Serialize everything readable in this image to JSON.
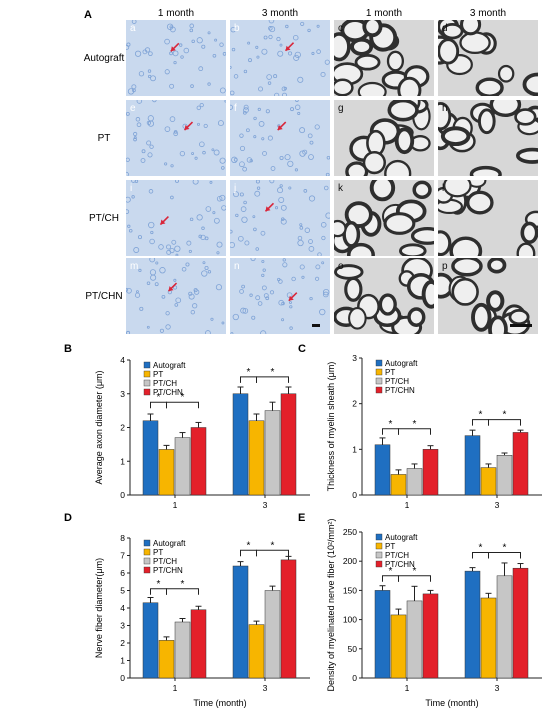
{
  "figure": {
    "micrograph_panel": {
      "panel_label": "A",
      "column_headers": [
        "1 month",
        "3 month",
        "1 month",
        "3 month"
      ],
      "row_labels": [
        "Autograft",
        "PT",
        "PT/CH",
        "PT/CHN"
      ],
      "tile_letters": [
        [
          "a",
          "b",
          "c",
          "d"
        ],
        [
          "e",
          "f",
          "g",
          "h"
        ],
        [
          "i",
          "j",
          "k",
          "l"
        ],
        [
          "m",
          "n",
          "o",
          "p"
        ]
      ],
      "colors": {
        "stain_bg": "#c9d9ee",
        "stain_dark": "#7fa3d6",
        "tem_bg": "#d7d7d7",
        "tem_dark": "#2e2e2e",
        "arrow": "#d9263a"
      }
    },
    "legend_labels": [
      "Autograft",
      "PT",
      "PT/CH",
      "PT/CHN"
    ],
    "colors": {
      "Autograft": "#1f6fc1",
      "PT": "#f7b500",
      "PT/CH": "#c6c6c6",
      "PT/CHN": "#e3202a"
    },
    "significance_mark": "*"
  },
  "chart_data": [
    {
      "panel_label": "B",
      "type": "bar",
      "categories": [
        "1",
        "3"
      ],
      "xlabel": "",
      "ylabel": "Average axon diameter (μm)",
      "ylim": [
        0,
        4
      ],
      "yticks": [
        0,
        1,
        2,
        3,
        4
      ],
      "legend_position": "top-left",
      "series": [
        {
          "name": "Autograft",
          "values": [
            2.2,
            3.0
          ],
          "errors": [
            0.2,
            0.2
          ]
        },
        {
          "name": "PT",
          "values": [
            1.35,
            2.2
          ],
          "errors": [
            0.12,
            0.2
          ]
        },
        {
          "name": "PT/CH",
          "values": [
            1.7,
            2.5
          ],
          "errors": [
            0.15,
            0.25
          ]
        },
        {
          "name": "PT/CHN",
          "values": [
            2.0,
            3.0
          ],
          "errors": [
            0.15,
            0.2
          ]
        }
      ],
      "significance_brackets": [
        {
          "category": 0,
          "from_series": 0,
          "to_series": 1,
          "level": 2.75,
          "label": "*"
        },
        {
          "category": 0,
          "from_series": 1,
          "to_series": 3,
          "level": 2.75,
          "label": "*"
        },
        {
          "category": 1,
          "from_series": 0,
          "to_series": 1,
          "level": 3.5,
          "label": "*"
        },
        {
          "category": 1,
          "from_series": 1,
          "to_series": 3,
          "level": 3.5,
          "label": "*"
        }
      ]
    },
    {
      "panel_label": "C",
      "type": "bar",
      "categories": [
        "1",
        "3"
      ],
      "xlabel": "",
      "ylabel": "Thickness of myelin sheath (μm)",
      "ylim": [
        0,
        3
      ],
      "yticks": [
        0,
        1,
        2,
        3
      ],
      "legend_position": "top-left",
      "series": [
        {
          "name": "Autograft",
          "values": [
            1.1,
            1.3
          ],
          "errors": [
            0.15,
            0.12
          ]
        },
        {
          "name": "PT",
          "values": [
            0.45,
            0.6
          ],
          "errors": [
            0.1,
            0.08
          ]
        },
        {
          "name": "PT/CH",
          "values": [
            0.58,
            0.87
          ],
          "errors": [
            0.1,
            0.05
          ]
        },
        {
          "name": "PT/CHN",
          "values": [
            1.0,
            1.37
          ],
          "errors": [
            0.08,
            0.05
          ]
        }
      ],
      "significance_brackets": [
        {
          "category": 0,
          "from_series": 0,
          "to_series": 1,
          "level": 1.45,
          "label": "*"
        },
        {
          "category": 0,
          "from_series": 1,
          "to_series": 3,
          "level": 1.45,
          "label": "*"
        },
        {
          "category": 1,
          "from_series": 0,
          "to_series": 1,
          "level": 1.65,
          "label": "*"
        },
        {
          "category": 1,
          "from_series": 1,
          "to_series": 3,
          "level": 1.65,
          "label": "*"
        }
      ]
    },
    {
      "panel_label": "D",
      "type": "bar",
      "categories": [
        "1",
        "3"
      ],
      "xlabel": "Time (month)",
      "ylabel": "Nerve fiber diameter(μm)",
      "ylim": [
        0,
        8
      ],
      "yticks": [
        0,
        1,
        2,
        3,
        4,
        5,
        6,
        7,
        8
      ],
      "legend_position": "top-left",
      "series": [
        {
          "name": "Autograft",
          "values": [
            4.3,
            6.4
          ],
          "errors": [
            0.3,
            0.25
          ]
        },
        {
          "name": "PT",
          "values": [
            2.15,
            3.05
          ],
          "errors": [
            0.2,
            0.2
          ]
        },
        {
          "name": "PT/CH",
          "values": [
            3.2,
            5.0
          ],
          "errors": [
            0.2,
            0.25
          ]
        },
        {
          "name": "PT/CHN",
          "values": [
            3.9,
            6.75
          ],
          "errors": [
            0.2,
            0.2
          ]
        }
      ],
      "significance_brackets": [
        {
          "category": 0,
          "from_series": 0,
          "to_series": 1,
          "level": 5.1,
          "label": "*"
        },
        {
          "category": 0,
          "from_series": 1,
          "to_series": 3,
          "level": 5.1,
          "label": "*"
        },
        {
          "category": 1,
          "from_series": 0,
          "to_series": 1,
          "level": 7.3,
          "label": "*"
        },
        {
          "category": 1,
          "from_series": 1,
          "to_series": 3,
          "level": 7.3,
          "label": "*"
        }
      ]
    },
    {
      "panel_label": "E",
      "type": "bar",
      "categories": [
        "1",
        "3"
      ],
      "xlabel": "Time (month)",
      "ylabel": "Density of myelinated nerve fiber (10²/mm²)",
      "ylim": [
        0,
        250
      ],
      "yticks": [
        0,
        50,
        100,
        150,
        200,
        250
      ],
      "legend_position": "top-left",
      "series": [
        {
          "name": "Autograft",
          "values": [
            150,
            183
          ],
          "errors": [
            8,
            6
          ]
        },
        {
          "name": "PT",
          "values": [
            108,
            137
          ],
          "errors": [
            10,
            8
          ]
        },
        {
          "name": "PT/CH",
          "values": [
            132,
            175
          ],
          "errors": [
            25,
            22
          ]
        },
        {
          "name": "PT/CHN",
          "values": [
            144,
            188
          ],
          "errors": [
            6,
            8
          ]
        }
      ],
      "significance_brackets": [
        {
          "category": 0,
          "from_series": 0,
          "to_series": 1,
          "level": 175,
          "label": "*"
        },
        {
          "category": 0,
          "from_series": 1,
          "to_series": 3,
          "level": 175,
          "label": "*"
        },
        {
          "category": 1,
          "from_series": 0,
          "to_series": 1,
          "level": 215,
          "label": "*"
        },
        {
          "category": 1,
          "from_series": 1,
          "to_series": 3,
          "level": 215,
          "label": "*"
        }
      ]
    }
  ]
}
